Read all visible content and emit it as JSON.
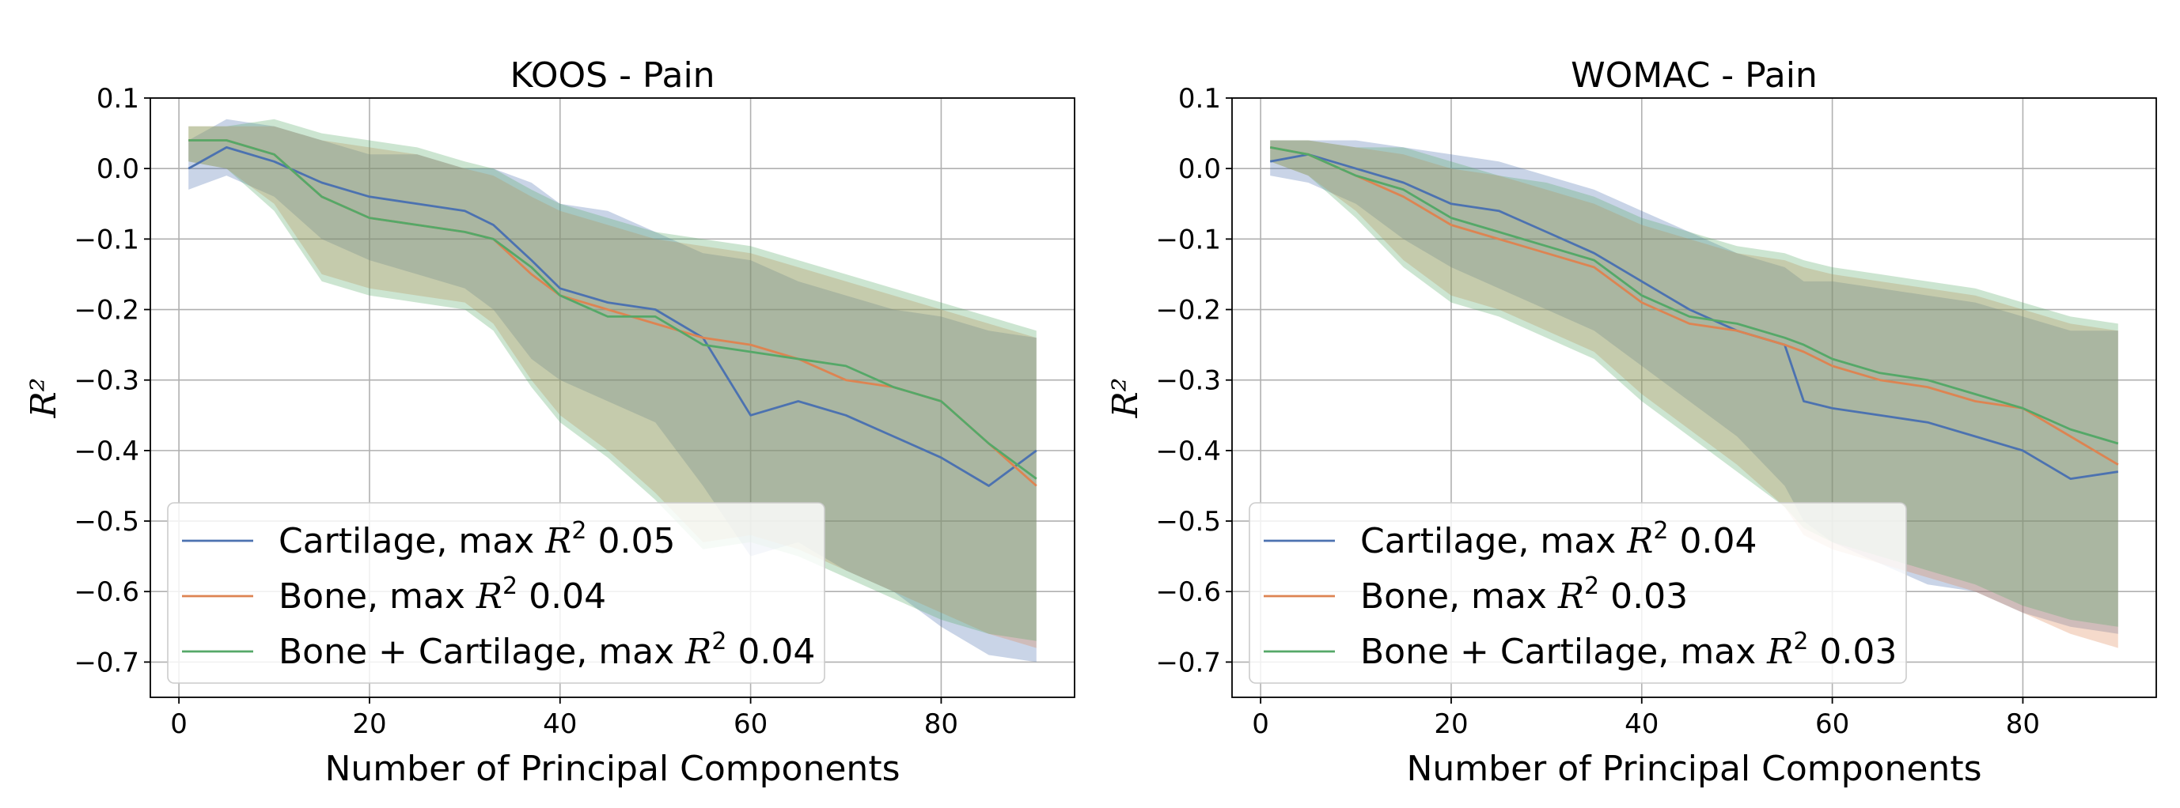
{
  "chart_data": [
    {
      "type": "line",
      "title": "KOOS - Pain",
      "xlabel": "Number of Principal Components",
      "ylabel": "R²",
      "xlim": [
        -3,
        94
      ],
      "ylim": [
        -0.75,
        0.1
      ],
      "xticks": [
        0,
        20,
        40,
        60,
        80
      ],
      "yticks": [
        0.1,
        0.0,
        -0.1,
        -0.2,
        -0.3,
        -0.4,
        -0.5,
        -0.6,
        -0.7
      ],
      "ytick_labels": [
        "0.1",
        "0.0",
        "−0.1",
        "−0.2",
        "−0.3",
        "−0.4",
        "−0.5",
        "−0.6",
        "−0.7"
      ],
      "grid": true,
      "legend_position": "lower-left",
      "x": [
        1,
        5,
        10,
        15,
        20,
        25,
        30,
        33,
        37,
        40,
        45,
        50,
        55,
        60,
        65,
        70,
        75,
        80,
        85,
        90
      ],
      "series": [
        {
          "name": "Cartilage",
          "legend_label": "Cartilage, max",
          "legend_value": "0.05",
          "color": "#4c72b0",
          "values": [
            0.0,
            0.03,
            0.01,
            -0.02,
            -0.04,
            -0.05,
            -0.06,
            -0.08,
            -0.13,
            -0.17,
            -0.19,
            -0.2,
            -0.24,
            -0.35,
            -0.33,
            -0.35,
            -0.38,
            -0.41,
            -0.45,
            -0.4
          ],
          "upper": [
            0.04,
            0.07,
            0.06,
            0.04,
            0.02,
            0.02,
            0.0,
            0.0,
            -0.02,
            -0.05,
            -0.06,
            -0.09,
            -0.12,
            -0.13,
            -0.16,
            -0.18,
            -0.2,
            -0.21,
            -0.23,
            -0.24
          ],
          "lower": [
            -0.03,
            -0.01,
            -0.04,
            -0.1,
            -0.13,
            -0.15,
            -0.17,
            -0.2,
            -0.27,
            -0.3,
            -0.33,
            -0.36,
            -0.45,
            -0.55,
            -0.53,
            -0.57,
            -0.6,
            -0.65,
            -0.69,
            -0.7
          ]
        },
        {
          "name": "Bone",
          "legend_label": "Bone, max",
          "legend_value": "0.04",
          "color": "#dd8452",
          "values": [
            0.04,
            0.04,
            0.02,
            -0.04,
            -0.07,
            -0.08,
            -0.09,
            -0.1,
            -0.15,
            -0.18,
            -0.2,
            -0.22,
            -0.24,
            -0.25,
            -0.27,
            -0.3,
            -0.31,
            -0.33,
            -0.39,
            -0.45
          ],
          "upper": [
            0.06,
            0.06,
            0.06,
            0.04,
            0.03,
            0.02,
            0.0,
            -0.01,
            -0.04,
            -0.06,
            -0.08,
            -0.1,
            -0.11,
            -0.12,
            -0.14,
            -0.16,
            -0.18,
            -0.2,
            -0.22,
            -0.24
          ],
          "lower": [
            0.01,
            0.0,
            -0.05,
            -0.15,
            -0.17,
            -0.18,
            -0.19,
            -0.22,
            -0.3,
            -0.35,
            -0.4,
            -0.46,
            -0.53,
            -0.52,
            -0.54,
            -0.57,
            -0.6,
            -0.63,
            -0.66,
            -0.68
          ]
        },
        {
          "name": "Bone + Cartilage",
          "legend_label": "Bone + Cartilage, max",
          "legend_value": "0.04",
          "color": "#55a868",
          "values": [
            0.04,
            0.04,
            0.02,
            -0.04,
            -0.07,
            -0.08,
            -0.09,
            -0.1,
            -0.14,
            -0.18,
            -0.21,
            -0.21,
            -0.25,
            -0.26,
            -0.27,
            -0.28,
            -0.31,
            -0.33,
            -0.39,
            -0.44
          ],
          "upper": [
            0.06,
            0.06,
            0.07,
            0.05,
            0.04,
            0.03,
            0.01,
            0.0,
            -0.03,
            -0.05,
            -0.07,
            -0.09,
            -0.1,
            -0.11,
            -0.13,
            -0.15,
            -0.17,
            -0.19,
            -0.21,
            -0.23
          ],
          "lower": [
            0.01,
            0.0,
            -0.06,
            -0.16,
            -0.18,
            -0.19,
            -0.2,
            -0.23,
            -0.31,
            -0.36,
            -0.41,
            -0.47,
            -0.54,
            -0.53,
            -0.55,
            -0.58,
            -0.61,
            -0.64,
            -0.66,
            -0.67
          ]
        }
      ]
    },
    {
      "type": "line",
      "title": "WOMAC - Pain",
      "xlabel": "Number of Principal Components",
      "ylabel": "R²",
      "xlim": [
        -3,
        94
      ],
      "ylim": [
        -0.75,
        0.1
      ],
      "xticks": [
        0,
        20,
        40,
        60,
        80
      ],
      "yticks": [
        0.1,
        0.0,
        -0.1,
        -0.2,
        -0.3,
        -0.4,
        -0.5,
        -0.6,
        -0.7
      ],
      "ytick_labels": [
        "0.1",
        "0.0",
        "−0.1",
        "−0.2",
        "−0.3",
        "−0.4",
        "−0.5",
        "−0.6",
        "−0.7"
      ],
      "grid": true,
      "legend_position": "lower-left",
      "x": [
        1,
        5,
        10,
        15,
        20,
        25,
        30,
        35,
        40,
        45,
        50,
        55,
        57,
        60,
        65,
        70,
        75,
        80,
        85,
        90
      ],
      "series": [
        {
          "name": "Cartilage",
          "legend_label": "Cartilage, max",
          "legend_value": "0.04",
          "color": "#4c72b0",
          "values": [
            0.01,
            0.02,
            0.0,
            -0.02,
            -0.05,
            -0.06,
            -0.09,
            -0.12,
            -0.16,
            -0.2,
            -0.23,
            -0.25,
            -0.33,
            -0.34,
            -0.35,
            -0.36,
            -0.38,
            -0.4,
            -0.44,
            -0.43
          ],
          "upper": [
            0.04,
            0.04,
            0.04,
            0.03,
            0.02,
            0.01,
            -0.01,
            -0.03,
            -0.06,
            -0.09,
            -0.12,
            -0.14,
            -0.16,
            -0.16,
            -0.17,
            -0.18,
            -0.19,
            -0.21,
            -0.23,
            -0.23
          ],
          "lower": [
            -0.01,
            -0.02,
            -0.05,
            -0.1,
            -0.14,
            -0.17,
            -0.2,
            -0.23,
            -0.28,
            -0.33,
            -0.38,
            -0.45,
            -0.5,
            -0.53,
            -0.56,
            -0.59,
            -0.6,
            -0.63,
            -0.65,
            -0.66
          ]
        },
        {
          "name": "Bone",
          "legend_label": "Bone, max",
          "legend_value": "0.03",
          "color": "#dd8452",
          "values": [
            0.03,
            0.02,
            -0.01,
            -0.04,
            -0.08,
            -0.1,
            -0.12,
            -0.14,
            -0.19,
            -0.22,
            -0.23,
            -0.25,
            -0.26,
            -0.28,
            -0.3,
            -0.31,
            -0.33,
            -0.34,
            -0.38,
            -0.42
          ],
          "upper": [
            0.04,
            0.04,
            0.03,
            0.02,
            0.0,
            -0.01,
            -0.03,
            -0.05,
            -0.08,
            -0.1,
            -0.12,
            -0.13,
            -0.14,
            -0.15,
            -0.16,
            -0.17,
            -0.18,
            -0.2,
            -0.22,
            -0.23
          ],
          "lower": [
            0.01,
            -0.01,
            -0.06,
            -0.13,
            -0.18,
            -0.2,
            -0.23,
            -0.26,
            -0.32,
            -0.37,
            -0.42,
            -0.48,
            -0.52,
            -0.54,
            -0.56,
            -0.58,
            -0.6,
            -0.63,
            -0.66,
            -0.68
          ]
        },
        {
          "name": "Bone + Cartilage",
          "legend_label": "Bone + Cartilage, max",
          "legend_value": "0.03",
          "color": "#55a868",
          "values": [
            0.03,
            0.02,
            -0.01,
            -0.03,
            -0.07,
            -0.09,
            -0.11,
            -0.13,
            -0.18,
            -0.21,
            -0.22,
            -0.24,
            -0.25,
            -0.27,
            -0.29,
            -0.3,
            -0.32,
            -0.34,
            -0.37,
            -0.39
          ],
          "upper": [
            0.04,
            0.04,
            0.03,
            0.03,
            0.01,
            -0.01,
            -0.02,
            -0.04,
            -0.07,
            -0.09,
            -0.11,
            -0.12,
            -0.13,
            -0.14,
            -0.15,
            -0.16,
            -0.17,
            -0.19,
            -0.21,
            -0.22
          ],
          "lower": [
            0.01,
            -0.01,
            -0.07,
            -0.14,
            -0.19,
            -0.21,
            -0.24,
            -0.27,
            -0.33,
            -0.38,
            -0.43,
            -0.48,
            -0.51,
            -0.53,
            -0.55,
            -0.57,
            -0.59,
            -0.62,
            -0.64,
            -0.65
          ]
        }
      ]
    }
  ]
}
